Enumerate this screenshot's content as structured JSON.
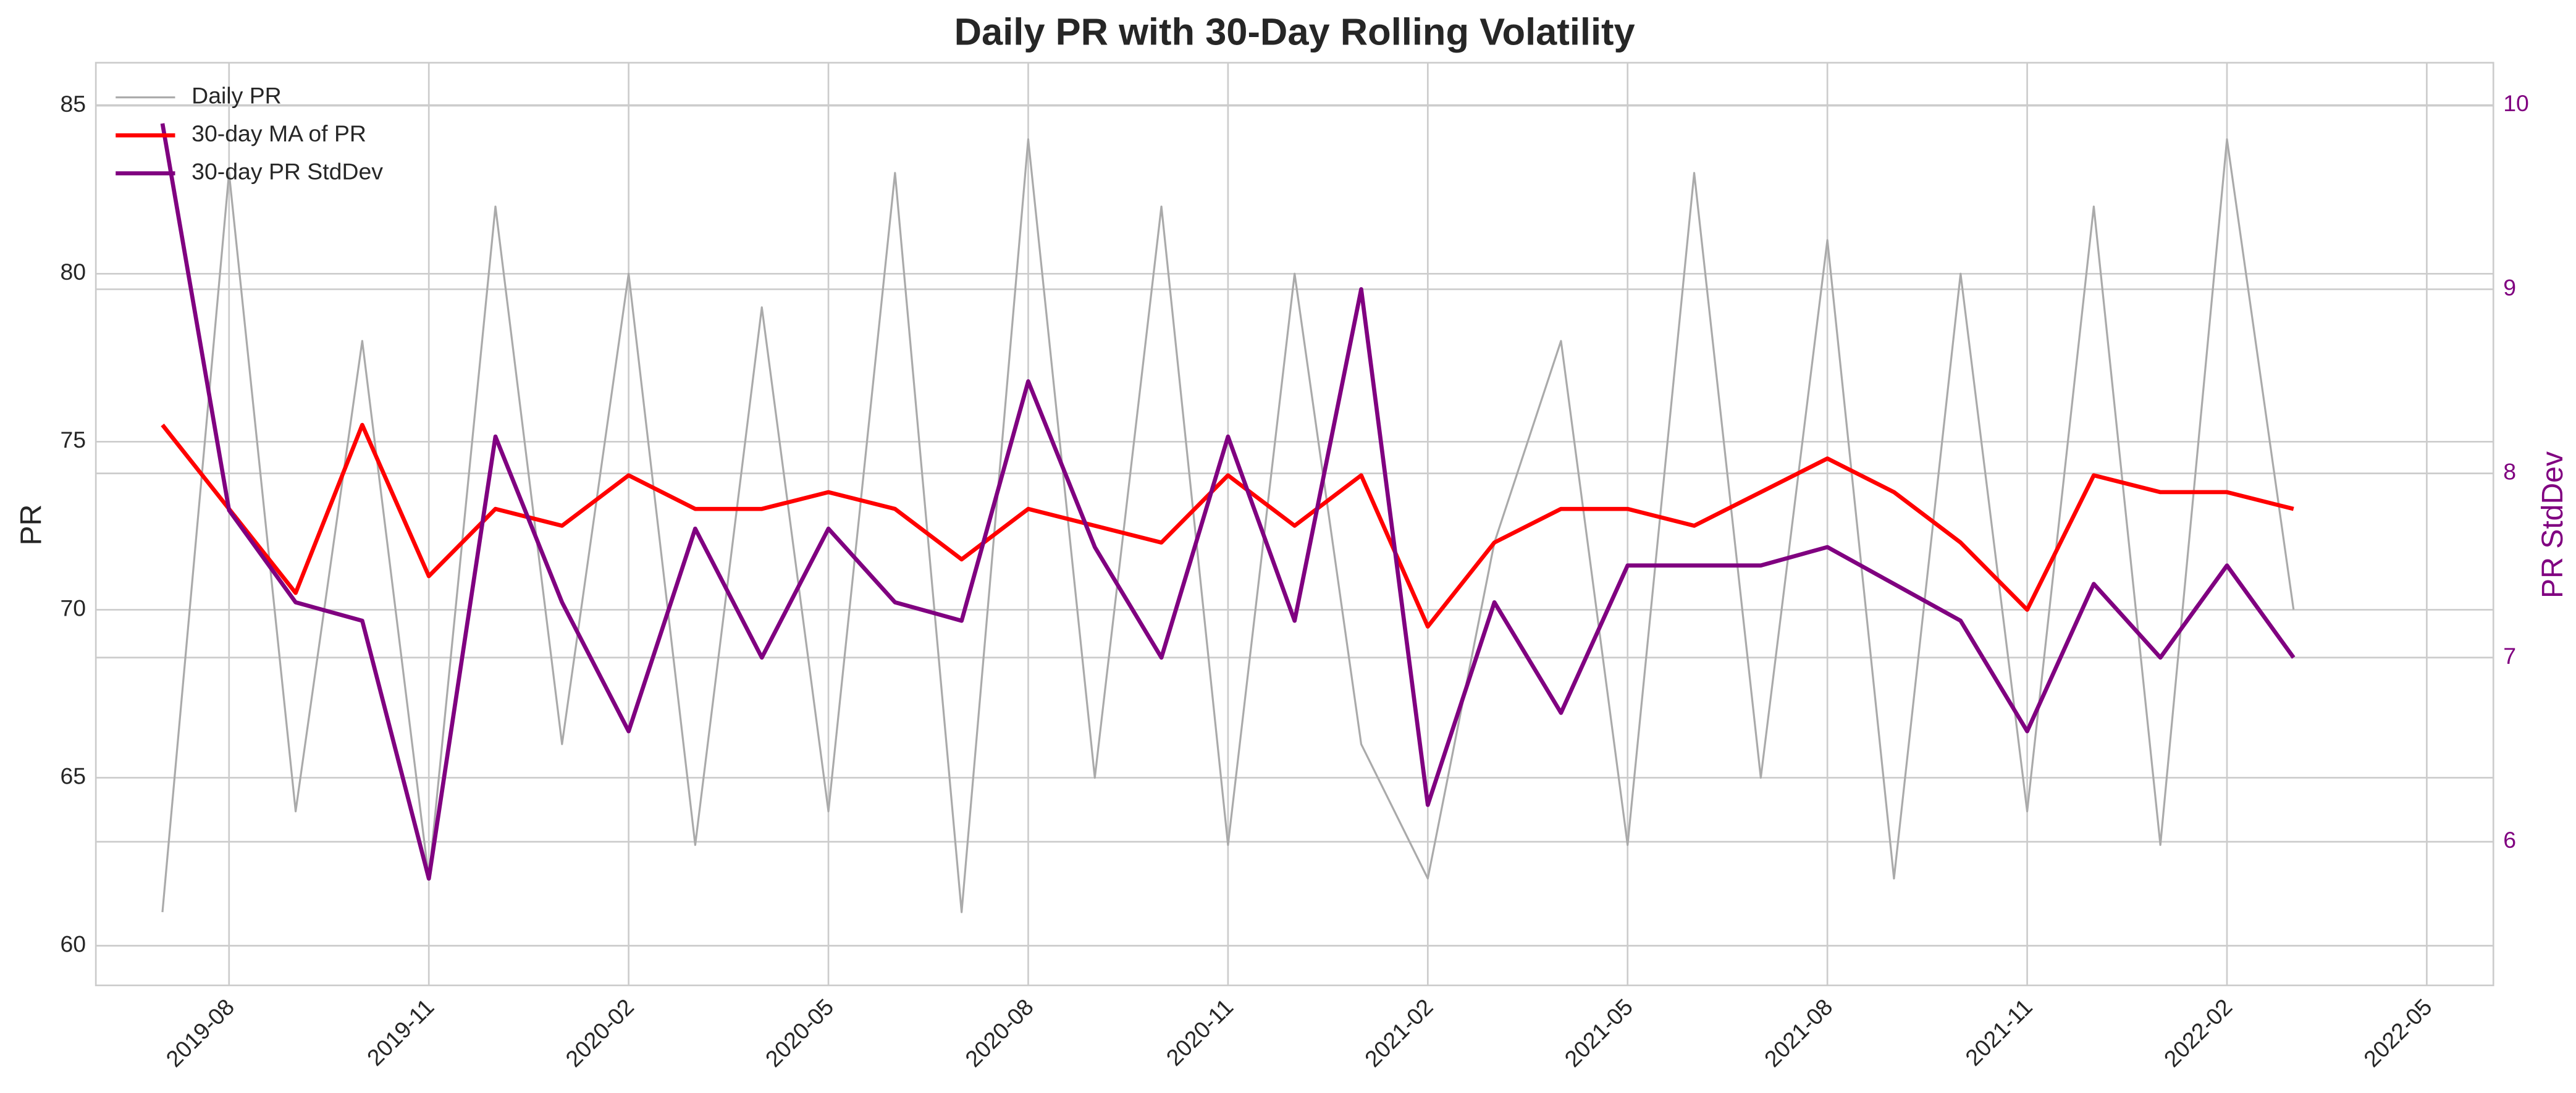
{
  "chart_data": {
    "type": "line",
    "title": "Daily PR with 30-Day Rolling Volatility",
    "y_label": "PR",
    "y2_label": "PR StdDev",
    "x": [
      "2019-07",
      "2019-08",
      "2019-09",
      "2019-10",
      "2019-11",
      "2019-12",
      "2020-01",
      "2020-02",
      "2020-03",
      "2020-04",
      "2020-05",
      "2020-06",
      "2020-07",
      "2020-08",
      "2020-09",
      "2020-10",
      "2020-11",
      "2020-12",
      "2021-01",
      "2021-02",
      "2021-03",
      "2021-04",
      "2021-05",
      "2021-06",
      "2021-07",
      "2021-08",
      "2021-09",
      "2021-10",
      "2021-11",
      "2021-12",
      "2022-01",
      "2022-02",
      "2022-03"
    ],
    "series": [
      {
        "name": "Daily PR",
        "color": "#aaaaaa",
        "axis": "y",
        "values": [
          61,
          83,
          64,
          78,
          62,
          82,
          66,
          80,
          63,
          79,
          64,
          83,
          61,
          84,
          65,
          82,
          63,
          80,
          66,
          62,
          72,
          78,
          63,
          83,
          65,
          81,
          62,
          80,
          64,
          82,
          63,
          84,
          70
        ]
      },
      {
        "name": "30-day MA of PR",
        "color": "#ff0000",
        "axis": "y",
        "values": [
          75.5,
          73,
          70.5,
          75.5,
          71,
          73,
          72.5,
          74,
          73,
          73,
          73.5,
          73,
          71.5,
          73,
          72.5,
          72,
          74,
          72.5,
          74,
          69.5,
          72,
          73,
          73,
          72.5,
          73.5,
          74.5,
          73.5,
          72,
          70,
          74,
          73.5,
          73.5,
          73
        ]
      },
      {
        "name": "30-day PR StdDev",
        "color": "#800080",
        "axis": "y2",
        "values": [
          9.9,
          7.8,
          7.3,
          7.2,
          5.8,
          8.2,
          7.3,
          6.6,
          7.7,
          7.0,
          7.7,
          7.3,
          7.2,
          8.5,
          7.6,
          7.0,
          8.2,
          7.2,
          9.0,
          6.2,
          7.3,
          6.7,
          7.5,
          7.5,
          7.5,
          7.6,
          7.4,
          7.2,
          6.6,
          7.4,
          7.0,
          7.5,
          7.0
        ]
      }
    ],
    "xlim": [
      "2019-06",
      "2022-06"
    ],
    "xticks": [
      "2019-08",
      "2019-11",
      "2020-02",
      "2020-05",
      "2020-08",
      "2020-11",
      "2021-02",
      "2021-05",
      "2021-08",
      "2021-11",
      "2022-02",
      "2022-05"
    ],
    "ylim": [
      58.82,
      86.28
    ],
    "yticks": [
      60,
      65,
      70,
      75,
      80,
      85
    ],
    "y2lim": [
      5.22,
      10.23
    ],
    "y2ticks": [
      6,
      7,
      8,
      9,
      10
    ],
    "y2_color": "#800080",
    "grid": true,
    "legend": "upper-left"
  }
}
